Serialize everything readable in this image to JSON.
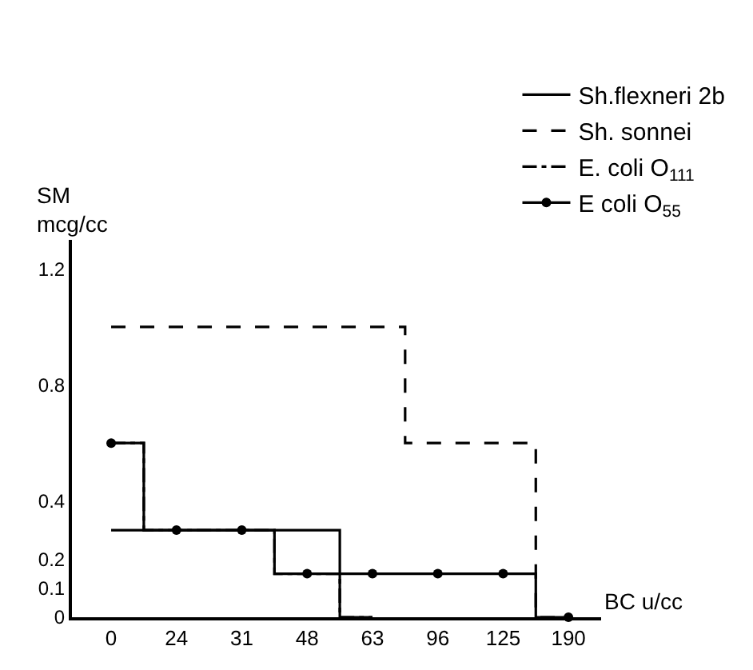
{
  "chart_data": {
    "type": "step",
    "ylabel": "SM\nmcg/cc",
    "xlabel": "BC u/cc",
    "categories": [
      "0",
      "24",
      "31",
      "48",
      "63",
      "96",
      "125",
      "190"
    ],
    "ylim": [
      0,
      1.3
    ],
    "yticks": [
      0,
      0.1,
      0.2,
      0.4,
      0.8,
      1.2
    ],
    "grid": false,
    "legend": "top right",
    "series": [
      {
        "name": "Sh.flexneri 2b",
        "color": "#000000",
        "line_style": "solid",
        "marker": "none",
        "values": [
          0.3,
          0.3,
          0.3,
          0.3,
          0,
          null,
          null,
          null
        ]
      },
      {
        "name": "Sh. sonnei",
        "color": "#000000",
        "line_style": "dashed",
        "marker": "none",
        "values": [
          1.0,
          1.0,
          1.0,
          1.0,
          1.0,
          0.6,
          0.6,
          0
        ]
      },
      {
        "name": "E. coli O$_{111}$",
        "color": "#000000",
        "line_style": "dashdot",
        "marker": "none",
        "values": [
          0.6,
          0.3,
          0.3,
          0.15,
          0,
          null,
          null,
          null
        ]
      },
      {
        "name": "E coli O$_{55}$",
        "color": "#000000",
        "line_style": "solid",
        "marker": "circle",
        "values": [
          0.6,
          0.3,
          0.3,
          0.15,
          0.15,
          0.15,
          0.15,
          0
        ]
      }
    ]
  }
}
